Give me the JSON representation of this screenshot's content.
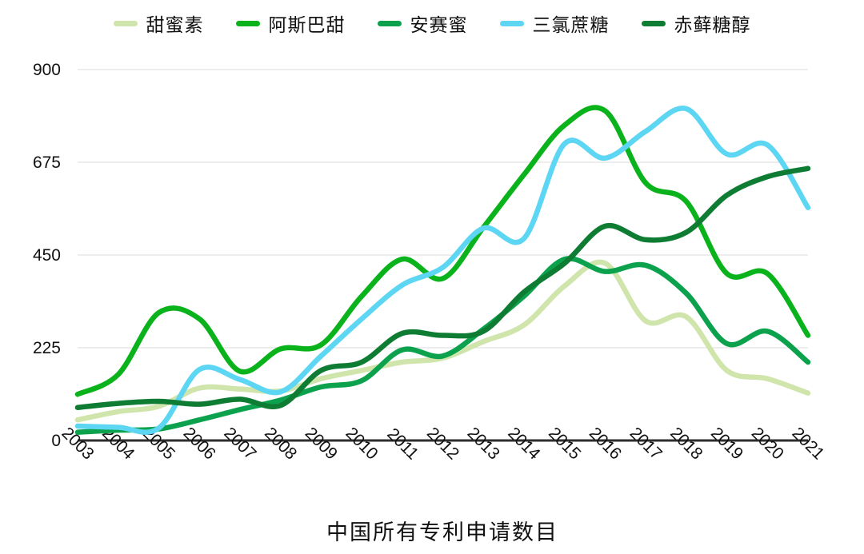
{
  "title": "中国所有专利申请数目",
  "legend": {
    "items": [
      {
        "label": "甜蜜素",
        "color": "#cfe5ab"
      },
      {
        "label": "阿斯巴甜",
        "color": "#0ab21b"
      },
      {
        "label": "安赛蜜",
        "color": "#0ca24d"
      },
      {
        "label": "三氯蔗糖",
        "color": "#5cd6f2"
      },
      {
        "label": "赤藓糖醇",
        "color": "#0e7c33"
      }
    ]
  },
  "chart_data": {
    "type": "line",
    "title": "中国所有专利申请数目",
    "x": [
      2003,
      2004,
      2005,
      2006,
      2007,
      2008,
      2009,
      2010,
      2011,
      2012,
      2013,
      2014,
      2015,
      2016,
      2017,
      2018,
      2019,
      2020,
      2021
    ],
    "series": [
      {
        "name": "甜蜜素",
        "color": "#cfe5ab",
        "values": [
          50,
          70,
          83,
          127,
          125,
          120,
          150,
          170,
          190,
          200,
          240,
          280,
          375,
          430,
          290,
          300,
          170,
          150,
          115
        ]
      },
      {
        "name": "阿斯巴甜",
        "color": "#0ab21b",
        "values": [
          112,
          160,
          310,
          295,
          168,
          222,
          232,
          350,
          440,
          393,
          517,
          645,
          765,
          800,
          625,
          580,
          405,
          405,
          255
        ]
      },
      {
        "name": "安赛蜜",
        "color": "#0ca24d",
        "values": [
          20,
          25,
          28,
          50,
          75,
          98,
          130,
          145,
          220,
          205,
          270,
          350,
          440,
          410,
          425,
          357,
          235,
          265,
          190
        ]
      },
      {
        "name": "三氯蔗糖",
        "color": "#5cd6f2",
        "values": [
          35,
          32,
          30,
          172,
          148,
          118,
          205,
          295,
          377,
          420,
          515,
          490,
          720,
          685,
          750,
          805,
          695,
          717,
          565
        ]
      },
      {
        "name": "赤藓糖醇",
        "color": "#0e7c33",
        "values": [
          80,
          90,
          95,
          88,
          100,
          85,
          170,
          190,
          260,
          255,
          265,
          360,
          430,
          520,
          487,
          505,
          595,
          640,
          660
        ]
      }
    ],
    "ylim": [
      0,
      900
    ],
    "yticks": [
      0,
      225,
      450,
      675,
      900
    ],
    "grid": true,
    "legend_position": "top",
    "axis_color": "#2e2e2e",
    "grid_color": "#e2e2e2",
    "tick_label_color": "#111111"
  }
}
